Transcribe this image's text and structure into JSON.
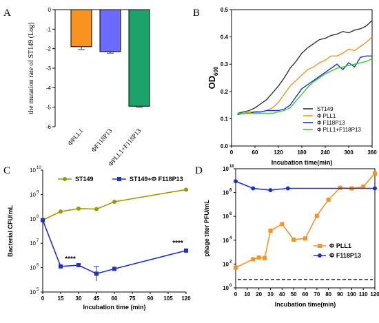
{
  "chart_data": [
    {
      "panel": "A",
      "type": "bar",
      "ylabel": "the mutation rate of ST149 (Log)",
      "ylim": [
        -6,
        0
      ],
      "yticks": [
        "0",
        "-1",
        "-2",
        "-3",
        "-4",
        "-5",
        "-6"
      ],
      "categories": [
        "ΦPLL1",
        "ΦF118P13",
        "ΦPLL1+F118P13"
      ],
      "values": [
        -1.9,
        -2.15,
        -4.95
      ],
      "errors": [
        0.15,
        0.08,
        0.05
      ],
      "colors": [
        "#f7931e",
        "#6b6bff",
        "#1aa36a"
      ]
    },
    {
      "panel": "B",
      "type": "line",
      "ylabel": "OD600",
      "ylabel_main": "OD",
      "ylabel_sub": "600",
      "xlabel": "Incubation time(min)",
      "xlim": [
        0,
        360
      ],
      "ylim": [
        0.0,
        0.5
      ],
      "xticks": [
        "0",
        "60",
        "120",
        "180",
        "240",
        "300",
        "360"
      ],
      "yticks": [
        "0.0",
        "0.1",
        "0.2",
        "0.3",
        "0.4",
        "0.5"
      ],
      "legend_position": "bottom-right",
      "series": [
        {
          "name": "ST149",
          "color": "#333333",
          "x": [
            15,
            30,
            45,
            60,
            75,
            90,
            105,
            120,
            135,
            150,
            165,
            180,
            195,
            210,
            225,
            240,
            255,
            270,
            285,
            300,
            315,
            330,
            345,
            360
          ],
          "y": [
            0.12,
            0.125,
            0.13,
            0.14,
            0.155,
            0.17,
            0.195,
            0.22,
            0.25,
            0.285,
            0.31,
            0.34,
            0.36,
            0.375,
            0.39,
            0.395,
            0.405,
            0.41,
            0.42,
            0.415,
            0.425,
            0.43,
            0.44,
            0.46
          ]
        },
        {
          "name": "Φ PLL1",
          "color": "#f7931e",
          "x": [
            15,
            30,
            45,
            60,
            75,
            90,
            105,
            120,
            135,
            150,
            165,
            180,
            195,
            210,
            225,
            240,
            255,
            270,
            285,
            300,
            315,
            330,
            345,
            360
          ],
          "y": [
            0.12,
            0.12,
            0.125,
            0.125,
            0.125,
            0.13,
            0.14,
            0.16,
            0.19,
            0.22,
            0.24,
            0.26,
            0.28,
            0.29,
            0.305,
            0.315,
            0.33,
            0.33,
            0.34,
            0.355,
            0.35,
            0.365,
            0.38,
            0.4
          ]
        },
        {
          "name": "Φ F118P13",
          "color": "#1c2fcf",
          "x": [
            15,
            30,
            45,
            60,
            75,
            90,
            105,
            120,
            135,
            150,
            165,
            180,
            195,
            210,
            225,
            240,
            255,
            270,
            285,
            300,
            315,
            330,
            345,
            360
          ],
          "y": [
            0.115,
            0.12,
            0.12,
            0.125,
            0.125,
            0.13,
            0.13,
            0.13,
            0.135,
            0.15,
            0.18,
            0.21,
            0.225,
            0.24,
            0.255,
            0.27,
            0.285,
            0.3,
            0.28,
            0.305,
            0.29,
            0.325,
            0.33,
            0.33
          ]
        },
        {
          "name": "Φ PLL1+F118P13",
          "color": "#33cc33",
          "x": [
            15,
            30,
            45,
            60,
            75,
            90,
            105,
            120,
            135,
            150,
            165,
            180,
            195,
            210,
            225,
            240,
            255,
            270,
            285,
            300,
            315,
            330,
            345,
            360
          ],
          "y": [
            0.12,
            0.12,
            0.12,
            0.12,
            0.12,
            0.12,
            0.12,
            0.125,
            0.13,
            0.14,
            0.165,
            0.19,
            0.215,
            0.235,
            0.25,
            0.265,
            0.275,
            0.285,
            0.29,
            0.295,
            0.3,
            0.305,
            0.31,
            0.32
          ]
        }
      ]
    },
    {
      "panel": "C",
      "type": "line",
      "ylabel": "Bacterial CFU/mL",
      "xlabel": "Incubation time (min)",
      "yscale": "log",
      "xlim": [
        0,
        120
      ],
      "ylim_exp": [
        5,
        10
      ],
      "xticks": [
        "0",
        "15",
        "30",
        "45",
        "60",
        "75",
        "90",
        "105",
        "120"
      ],
      "ytick_base": "10",
      "ytick_exps": [
        "5",
        "6",
        "7",
        "8",
        "9",
        "10"
      ],
      "legend_position": "top",
      "annotations": [
        {
          "text": "****",
          "x": 15
        },
        {
          "text": "****",
          "x": 120
        }
      ],
      "series": [
        {
          "name": "ST149",
          "color": "#999900",
          "x": [
            0,
            15,
            30,
            45,
            60,
            120
          ],
          "log10_y": [
            7.95,
            8.3,
            8.42,
            8.4,
            8.7,
            9.2
          ]
        },
        {
          "name": "ST149+Φ F118P13",
          "color": "#1f2fd6",
          "x": [
            0,
            15,
            30,
            45,
            60,
            120
          ],
          "log10_y": [
            7.95,
            6.05,
            6.1,
            5.75,
            5.95,
            6.7
          ],
          "err_log10": [
            0,
            0,
            0,
            0.3,
            0,
            0
          ]
        }
      ]
    },
    {
      "panel": "D",
      "type": "line",
      "ylabel": "phage titer PFU/mL",
      "xlabel": "Incubation time(min)",
      "yscale": "log",
      "xlim": [
        0,
        120
      ],
      "ylim_exp": [
        0,
        10
      ],
      "xticks": [
        "0",
        "10",
        "20",
        "30",
        "40",
        "50",
        "60",
        "70",
        "80",
        "90",
        "100",
        "110",
        "120"
      ],
      "ytick_base": "10",
      "ytick_exps": [
        "0",
        "2",
        "4",
        "6",
        "8",
        "10"
      ],
      "legend_position": "center-right",
      "baseline_log10": 0.7,
      "series": [
        {
          "name": "Φ PLL1",
          "color": "#f7931e",
          "x": [
            0,
            15,
            20,
            25,
            30,
            40,
            50,
            60,
            70,
            80,
            90,
            100,
            110,
            120
          ],
          "log10_y": [
            1.7,
            2.4,
            2.55,
            2.5,
            4.8,
            5.35,
            4.05,
            4.15,
            6.05,
            7.4,
            8.4,
            8.35,
            8.5,
            9.6
          ]
        },
        {
          "name": "Φ F118P13",
          "color": "#1f2fd6",
          "x": [
            0,
            15,
            30,
            45,
            120
          ],
          "log10_y": [
            8.95,
            8.35,
            8.2,
            8.35,
            8.35
          ]
        }
      ]
    }
  ],
  "panel_letters": [
    "A",
    "B",
    "C",
    "D"
  ]
}
